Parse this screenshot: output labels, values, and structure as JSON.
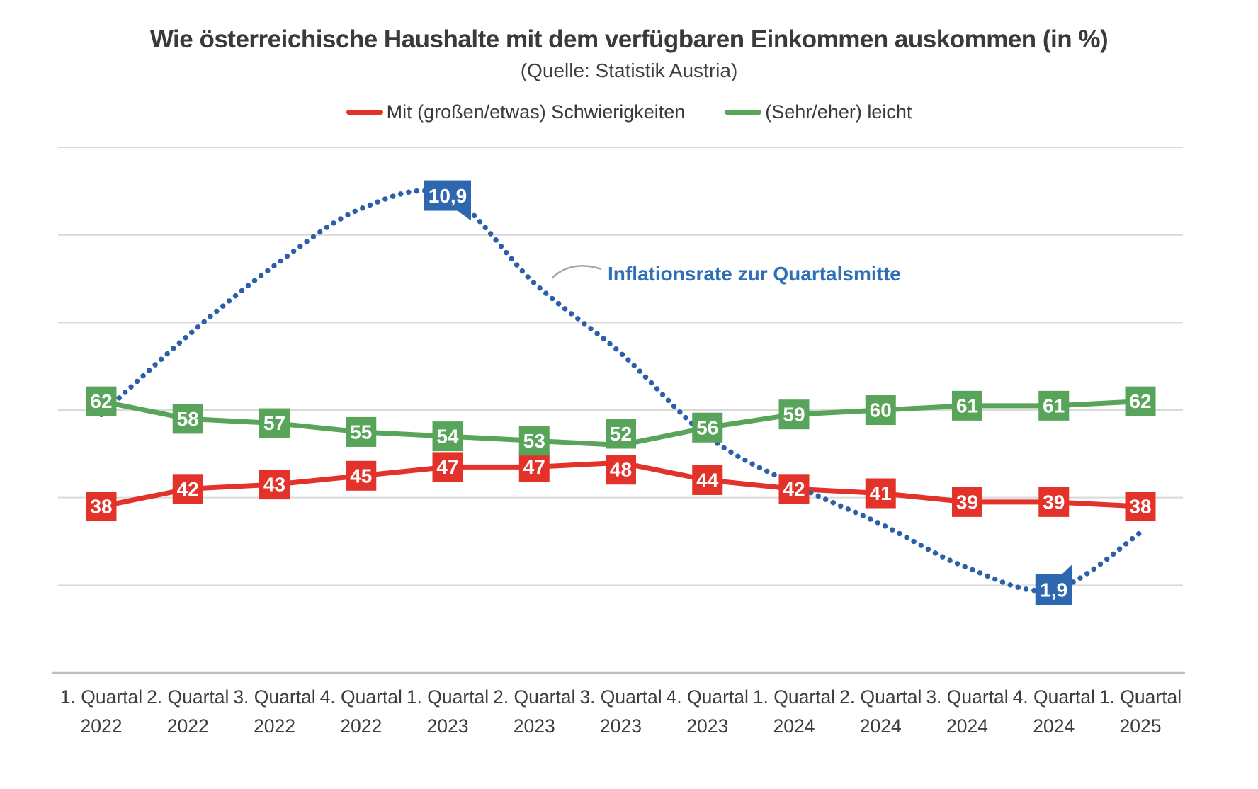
{
  "header": {
    "title": "Wie österreichische Haushalte mit dem verfügbaren Einkommen auskommen (in %)",
    "subtitle": "(Quelle: Statistik Austria)"
  },
  "legend": {
    "items": [
      {
        "label": "Mit (großen/etwas) Schwierigkeiten",
        "color": "#e23229"
      },
      {
        "label": "(Sehr/eher) leicht",
        "color": "#57a45a"
      }
    ]
  },
  "annotation": {
    "label": "Inflationsrate zur Quartalsmitte",
    "color": "#2e6fb8",
    "leader_color": "#a6a6a6"
  },
  "chart_data": {
    "type": "line",
    "categories": [
      "1. Quartal 2022",
      "2. Quartal 2022",
      "3. Quartal 2022",
      "4. Quartal 2022",
      "1. Quartal 2023",
      "2. Quartal 2023",
      "3. Quartal 2023",
      "4. Quartal 2023",
      "1. Quartal 2024",
      "2. Quartal 2024",
      "3. Quartal 2024",
      "4. Quartal 2024",
      "1. Quartal 2025"
    ],
    "series": [
      {
        "name": "Mit (großen/etwas) Schwierigkeiten",
        "color": "#e23229",
        "style": "solid",
        "axis": "percent",
        "values": [
          38,
          42,
          43,
          45,
          47,
          47,
          48,
          44,
          42,
          41,
          39,
          39,
          38
        ],
        "data_labels": [
          "38",
          "42",
          "43",
          "45",
          "47",
          "47",
          "48",
          "44",
          "42",
          "41",
          "39",
          "39",
          "38"
        ]
      },
      {
        "name": "(Sehr/eher) leicht",
        "color": "#57a45a",
        "style": "solid",
        "axis": "percent",
        "values": [
          62,
          58,
          57,
          55,
          54,
          53,
          52,
          56,
          59,
          60,
          61,
          61,
          62
        ],
        "data_labels": [
          "62",
          "58",
          "57",
          "55",
          "54",
          "53",
          "52",
          "56",
          "59",
          "60",
          "61",
          "61",
          "62"
        ]
      },
      {
        "name": "Inflationsrate zur Quartalsmitte",
        "color": "#2b5fa9",
        "callout_color": "#2d67b0",
        "style": "dotted",
        "axis": "inflation",
        "values": [
          5.9,
          7.7,
          9.3,
          10.6,
          10.9,
          8.9,
          7.3,
          5.4,
          4.3,
          3.4,
          2.4,
          1.9,
          3.2
        ],
        "labeled_points": [
          {
            "index": 4,
            "label": "10,9"
          },
          {
            "index": 11,
            "label": "1,9"
          }
        ]
      }
    ],
    "percent_axis": {
      "min": 0,
      "max": 120,
      "gridline_step": 20,
      "labels_visible": false
    },
    "inflation_axis": {
      "min": 0,
      "max": 12,
      "gridline_step": 2,
      "labels_visible": false
    },
    "grid": {
      "visible": true,
      "color": "#d9d9d9",
      "axis_line_color": "#bfbfbf"
    },
    "x_label_color": "#3d3d3d",
    "legend_position": "top",
    "data_label_text_color": "#ffffff"
  }
}
